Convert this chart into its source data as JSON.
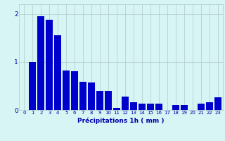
{
  "categories": [
    0,
    1,
    2,
    3,
    4,
    5,
    6,
    7,
    8,
    9,
    10,
    11,
    12,
    13,
    14,
    15,
    16,
    17,
    18,
    19,
    20,
    21,
    22,
    23
  ],
  "values": [
    0.0,
    1.0,
    1.95,
    1.88,
    1.55,
    0.82,
    0.8,
    0.58,
    0.57,
    0.4,
    0.4,
    0.05,
    0.28,
    0.16,
    0.13,
    0.13,
    0.13,
    0.0,
    0.1,
    0.1,
    0.0,
    0.13,
    0.16,
    0.27
  ],
  "bar_color": "#0000cc",
  "background_color": "#d8f5f5",
  "grid_color": "#b0c8c8",
  "xlabel": "Précipitations 1h ( mm )",
  "xlabel_color": "#0000aa",
  "tick_color": "#0000aa",
  "ylim": [
    0,
    2.2
  ],
  "yticks": [
    0,
    1,
    2
  ],
  "bar_width": 0.85,
  "tick_fontsize": 5.0,
  "xlabel_fontsize": 6.5
}
